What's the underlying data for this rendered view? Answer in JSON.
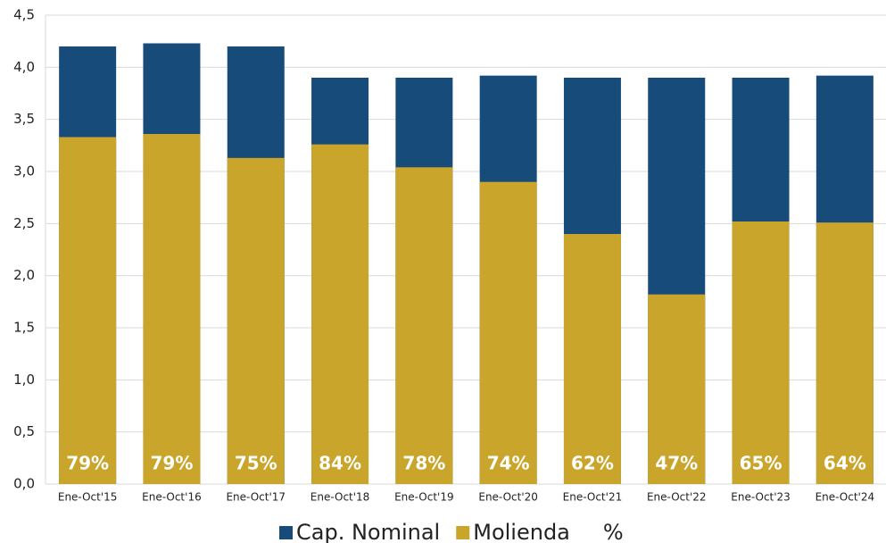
{
  "chart_data": {
    "type": "bar",
    "categories": [
      "Ene-Oct'15",
      "Ene-Oct'16",
      "Ene-Oct'17",
      "Ene-Oct'18",
      "Ene-Oct'19",
      "Ene-Oct'20",
      "Ene-Oct'21",
      "Ene-Oct'22",
      "Ene-Oct'23",
      "Ene-Oct'24"
    ],
    "series": [
      {
        "name": "Cap. Nominal",
        "color": "#174b7a",
        "values": [
          4.2,
          4.23,
          4.2,
          3.9,
          3.9,
          3.92,
          3.9,
          3.9,
          3.9,
          3.92
        ]
      },
      {
        "name": "Molienda",
        "color": "#c9a52b",
        "values": [
          3.33,
          3.36,
          3.13,
          3.26,
          3.04,
          2.9,
          2.4,
          1.82,
          2.52,
          2.51
        ]
      },
      {
        "name": "%",
        "color": "#ffffff",
        "values": [
          79,
          79,
          75,
          84,
          78,
          74,
          62,
          47,
          65,
          64
        ],
        "value_labels": [
          "79%",
          "79%",
          "75%",
          "84%",
          "78%",
          "74%",
          "62%",
          "47%",
          "65%",
          "64%"
        ]
      }
    ],
    "ylim": [
      0,
      4.5
    ],
    "yticks": [
      {
        "value": 0,
        "label": "0,0"
      },
      {
        "value": 0.5,
        "label": "0,5"
      },
      {
        "value": 1,
        "label": "1,0"
      },
      {
        "value": 1.5,
        "label": "1,5"
      },
      {
        "value": 2,
        "label": "2,0"
      },
      {
        "value": 2.5,
        "label": "2,5"
      },
      {
        "value": 3,
        "label": "3,0"
      },
      {
        "value": 3.5,
        "label": "3,5"
      },
      {
        "value": 4,
        "label": "4,0"
      },
      {
        "value": 4.5,
        "label": "4,5"
      }
    ],
    "grid": true
  }
}
